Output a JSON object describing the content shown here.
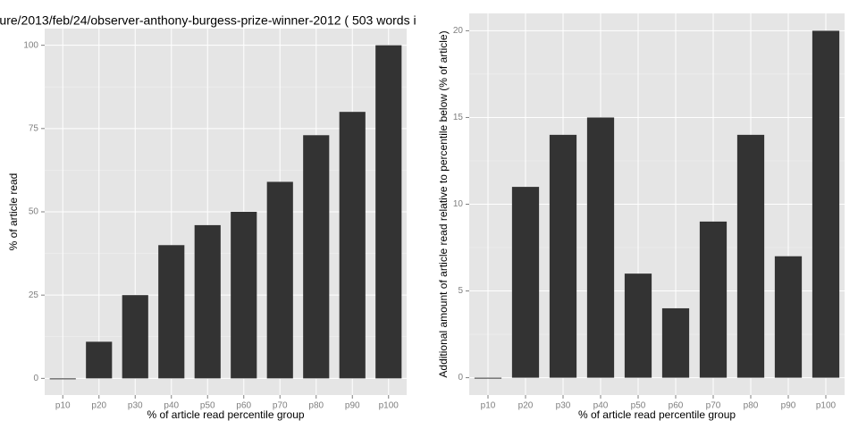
{
  "chart_data": [
    {
      "type": "bar",
      "title": "ure/2013/feb/24/observer-anthony-burgess-prize-winner-2012 ( 503 words i",
      "x_label": "% of article read percentile group",
      "y_label": "% of article read",
      "categories": [
        "p10",
        "p20",
        "p30",
        "p40",
        "p50",
        "p60",
        "p70",
        "p80",
        "p90",
        "p100"
      ],
      "values": [
        0,
        11,
        25,
        40,
        46,
        50,
        59,
        73,
        80,
        100
      ],
      "color": "#333333",
      "ylim": [
        -5,
        105
      ],
      "yticks": [
        0,
        25,
        50,
        75,
        100
      ],
      "grid": true
    },
    {
      "type": "bar",
      "x_label": "% of article read percentile group",
      "y_label": "Additional amount of article read relative to percentile below (% of article)",
      "categories": [
        "p10",
        "p20",
        "p30",
        "p40",
        "p50",
        "p60",
        "p70",
        "p80",
        "p90",
        "p100"
      ],
      "values": [
        0,
        11,
        14,
        15,
        6,
        4,
        9,
        14,
        7,
        20
      ],
      "color": "#333333",
      "ylim": [
        -1,
        21
      ],
      "yticks": [
        0,
        5,
        10,
        15,
        20
      ],
      "grid": true
    }
  ]
}
